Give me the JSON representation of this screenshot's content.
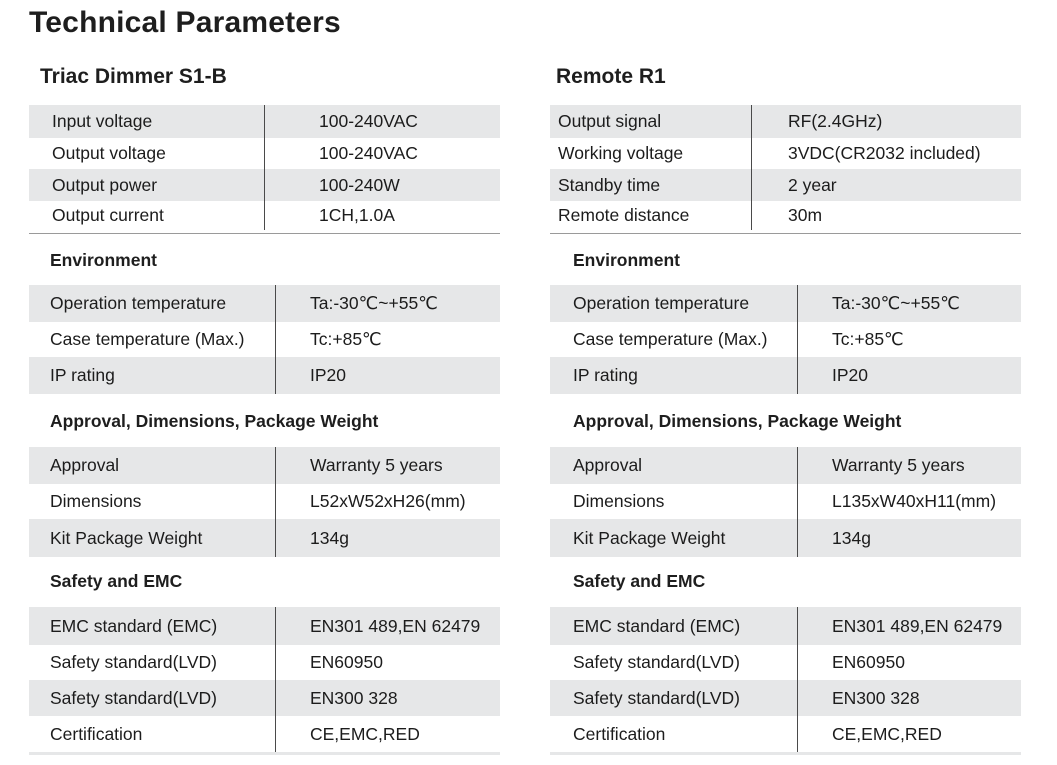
{
  "page_title": "Technical Parameters",
  "columns": [
    {
      "product": "Triac Dimmer S1-B",
      "main_specs": [
        {
          "label": "Input voltage",
          "value": "100-240VAC"
        },
        {
          "label": "Output voltage",
          "value": "100-240VAC"
        },
        {
          "label": "Output power",
          "value": "100-240W"
        },
        {
          "label": "Output current",
          "value": "1CH,1.0A"
        }
      ],
      "environment": {
        "title": "Environment",
        "rows": [
          {
            "label": "Operation temperature",
            "value": "Ta:-30℃~+55℃"
          },
          {
            "label": "Case temperature (Max.)",
            "value": "Tc:+85℃"
          },
          {
            "label": "IP rating",
            "value": "IP20"
          }
        ]
      },
      "approval": {
        "title": "Approval, Dimensions, Package Weight",
        "rows": [
          {
            "label": "Approval",
            "value": "Warranty 5 years"
          },
          {
            "label": "Dimensions",
            "value": "L52xW52xH26(mm)"
          },
          {
            "label": "Kit Package Weight",
            "value": "134g"
          }
        ]
      },
      "safety": {
        "title": "Safety and EMC",
        "rows": [
          {
            "label": "EMC standard (EMC)",
            "value": "EN301 489,EN 62479"
          },
          {
            "label": "Safety standard(LVD)",
            "value": "EN60950"
          },
          {
            "label": "Safety standard(LVD)",
            "value": "EN300 328"
          },
          {
            "label": "Certification",
            "value": "CE,EMC,RED"
          }
        ]
      }
    },
    {
      "product": "Remote R1",
      "main_specs": [
        {
          "label": "Output signal",
          "value": "RF(2.4GHz)"
        },
        {
          "label": "Working voltage",
          "value": "3VDC(CR2032 included)"
        },
        {
          "label": "Standby time",
          "value": "2 year"
        },
        {
          "label": "Remote distance",
          "value": "30m"
        }
      ],
      "environment": {
        "title": "Environment",
        "rows": [
          {
            "label": "Operation temperature",
            "value": "Ta:-30℃~+55℃"
          },
          {
            "label": "Case temperature (Max.)",
            "value": "Tc:+85℃"
          },
          {
            "label": "IP rating",
            "value": "IP20"
          }
        ]
      },
      "approval": {
        "title": "Approval, Dimensions, Package Weight",
        "rows": [
          {
            "label": "Approval",
            "value": "Warranty 5 years"
          },
          {
            "label": "Dimensions",
            "value": "L135xW40xH11(mm)"
          },
          {
            "label": "Kit Package Weight",
            "value": "134g"
          }
        ]
      },
      "safety": {
        "title": "Safety and EMC",
        "rows": [
          {
            "label": "EMC standard (EMC)",
            "value": "EN301 489,EN 62479"
          },
          {
            "label": "Safety standard(LVD)",
            "value": "EN60950"
          },
          {
            "label": "Safety standard(LVD)",
            "value": "EN300 328"
          },
          {
            "label": "Certification",
            "value": "CE,EMC,RED"
          }
        ]
      }
    }
  ]
}
